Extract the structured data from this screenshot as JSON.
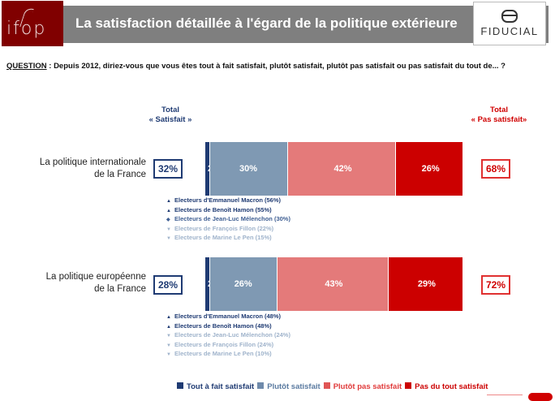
{
  "header": {
    "logo_left": "ifop",
    "title": "La satisfaction détaillée à l'égard de la politique extérieure",
    "logo_right": "FIDUCIAL"
  },
  "question": {
    "label": "QUESTION",
    "text": " : Depuis 2012, diriez-vous que vous êtes tout à fait satisfait, plutôt satisfait, plutôt pas satisfait ou pas satisfait du tout de... ?"
  },
  "totals_header": {
    "satisfied_line1": "Total",
    "satisfied_line2": "« Satisfait »",
    "not_satisfied_line1": "Total",
    "not_satisfied_line2": "« Pas satisfait»"
  },
  "colors": {
    "tout_a_fait": "#1f3b73",
    "plutot": "#7f99b3",
    "plutot_pas": "#e47a7a",
    "pas_du_tout": "#cc0000"
  },
  "chart_data": {
    "type": "bar",
    "orientation": "horizontal-stacked",
    "title": "La satisfaction détaillée à l'égard de la politique extérieure",
    "categories": [
      "La politique internationale de la France",
      "La politique européenne de la France"
    ],
    "series": [
      {
        "name": "Tout à fait satisfait",
        "values": [
          2,
          2
        ]
      },
      {
        "name": "Plutôt satisfait",
        "values": [
          30,
          26
        ]
      },
      {
        "name": "Plutôt pas satisfait",
        "values": [
          42,
          43
        ]
      },
      {
        "name": "Pas du tout satisfait",
        "values": [
          26,
          29
        ]
      }
    ],
    "total_satisfait": [
      32,
      28
    ],
    "total_pas_satisfait": [
      68,
      72
    ],
    "xlim": [
      0,
      100
    ],
    "legend_position": "bottom",
    "grid": false
  },
  "rows": [
    {
      "label_line1": "La politique internationale",
      "label_line2": "de la France",
      "total_sat": "32%",
      "total_pas": "68%",
      "segments": [
        {
          "value": 2,
          "label": "2%"
        },
        {
          "value": 30,
          "label": "30%"
        },
        {
          "value": 42,
          "label": "42%"
        },
        {
          "value": 26,
          "label": "26%"
        }
      ],
      "voters": [
        {
          "arrow": "up",
          "text": "Electeurs d'Emmanuel Macron (56%)",
          "emphasis": "strong"
        },
        {
          "arrow": "up",
          "text": "Electeurs de Benoît Hamon (55%)",
          "emphasis": "strong"
        },
        {
          "arrow": "equal",
          "text": "Electeurs de Jean-Luc Mélenchon (30%)",
          "emphasis": "medium"
        },
        {
          "arrow": "down",
          "text": "Electeurs de François Fillon (22%)",
          "emphasis": "light"
        },
        {
          "arrow": "down",
          "text": "Electeurs de Marine Le Pen (15%)",
          "emphasis": "light"
        }
      ]
    },
    {
      "label_line1": "La politique européenne",
      "label_line2": "de la France",
      "total_sat": "28%",
      "total_pas": "72%",
      "segments": [
        {
          "value": 2,
          "label": "2%"
        },
        {
          "value": 26,
          "label": "26%"
        },
        {
          "value": 43,
          "label": "43%"
        },
        {
          "value": 29,
          "label": "29%"
        }
      ],
      "voters": [
        {
          "arrow": "up",
          "text": "Electeurs d'Emmanuel Macron (48%)",
          "emphasis": "strong"
        },
        {
          "arrow": "up",
          "text": "Electeurs de Benoît Hamon (48%)",
          "emphasis": "strong"
        },
        {
          "arrow": "down",
          "text": "Electeurs de Jean-Luc Mélenchon (24%)",
          "emphasis": "light"
        },
        {
          "arrow": "down",
          "text": "Electeurs de François Fillon (24%)",
          "emphasis": "light"
        },
        {
          "arrow": "down",
          "text": "Electeurs de Marine Le Pen (10%)",
          "emphasis": "light"
        }
      ]
    }
  ],
  "legend": [
    {
      "label": "Tout à fait satisfait",
      "color": "#1f3b73"
    },
    {
      "label": "Plutôt satisfait",
      "color": "#6f8aab"
    },
    {
      "label": "Plutôt pas satisfait",
      "color": "#e05555"
    },
    {
      "label": "Pas du tout satisfait",
      "color": "#cc0000"
    }
  ]
}
